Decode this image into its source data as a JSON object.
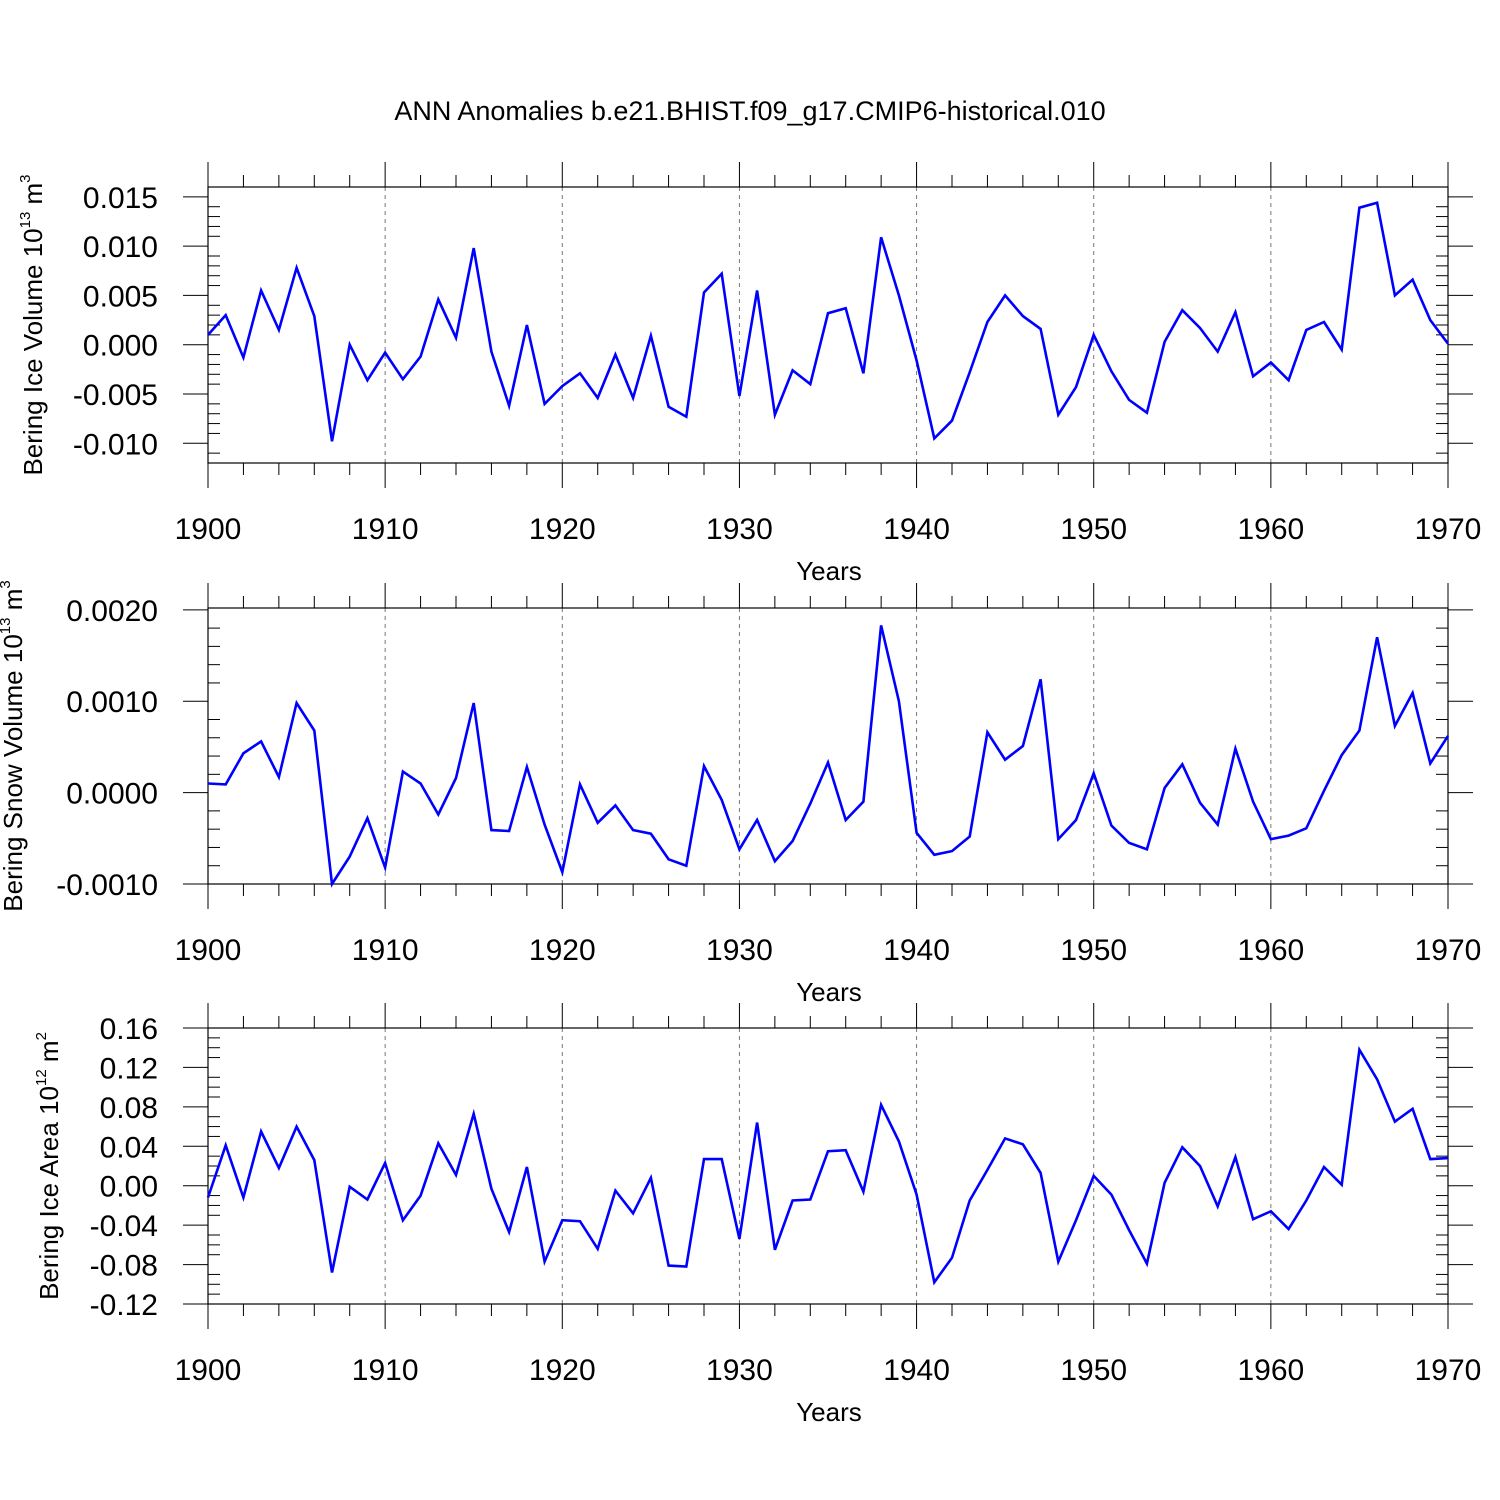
{
  "title": "ANN Anomalies b.e21.BHIST.f09_g17.CMIP6-historical.010",
  "colors": {
    "line": "#0000ff",
    "axis": "#000000",
    "grid": "#777777"
  },
  "chart_data": [
    {
      "type": "line",
      "title": "ANN Anomalies b.e21.BHIST.f09_g17.CMIP6-historical.010",
      "xlabel": "Years",
      "ylabel": {
        "base": "Bering Ice Volume 10",
        "sup": "13",
        "unit": " m",
        "unit_sup": "3"
      },
      "xlim": [
        1900,
        1970
      ],
      "ylim": [
        -0.012,
        0.016
      ],
      "xticks": [
        1900,
        1910,
        1920,
        1930,
        1940,
        1950,
        1960,
        1970
      ],
      "xtick_labels": [
        "1900",
        "1910",
        "1920",
        "1930",
        "1940",
        "1950",
        "1960",
        "1970"
      ],
      "yticks": [
        -0.01,
        -0.005,
        0.0,
        0.005,
        0.01,
        0.015
      ],
      "ytick_labels": [
        "-0.010",
        "-0.005",
        "0.000",
        "0.005",
        "0.010",
        "0.015"
      ],
      "yminor_step": 0.001,
      "grid": "vertical dashed at decades",
      "x_start": 1900,
      "values": [
        0.001,
        0.003,
        -0.0013,
        0.0055,
        0.0015,
        0.0078,
        0.0029,
        -0.0098,
        0.0,
        -0.0036,
        -0.0008,
        -0.0035,
        -0.0012,
        0.0046,
        0.0007,
        0.0098,
        -0.0007,
        -0.0062,
        0.002,
        -0.006,
        -0.0042,
        -0.0029,
        -0.0054,
        -0.001,
        -0.0054,
        0.0009,
        -0.0063,
        -0.0073,
        0.0053,
        0.0072,
        -0.0052,
        0.0055,
        -0.0071,
        -0.0026,
        -0.004,
        0.0032,
        0.0037,
        -0.0029,
        0.0109,
        0.005,
        -0.0016,
        -0.0095,
        -0.0077,
        -0.0028,
        0.0023,
        0.005,
        0.0029,
        0.0016,
        -0.0071,
        -0.0043,
        0.001,
        -0.0027,
        -0.0056,
        -0.0069,
        0.0003,
        0.0035,
        0.0017,
        -0.0007,
        0.0033,
        -0.0032,
        -0.0018,
        -0.0036,
        0.0015,
        0.0023,
        -0.0005,
        0.0139,
        0.0144,
        0.005,
        0.0066,
        0.0025,
        0.0001
      ]
    },
    {
      "type": "line",
      "xlabel": "Years",
      "ylabel": {
        "base": "Bering Snow Volume 10",
        "sup": "13",
        "unit": " m",
        "unit_sup": "3"
      },
      "xlim": [
        1900,
        1970
      ],
      "ylim": [
        -0.001,
        0.00202
      ],
      "xticks": [
        1900,
        1910,
        1920,
        1930,
        1940,
        1950,
        1960,
        1970
      ],
      "xtick_labels": [
        "1900",
        "1910",
        "1920",
        "1930",
        "1940",
        "1950",
        "1960",
        "1970"
      ],
      "yticks": [
        -0.001,
        0.0,
        0.001,
        0.002
      ],
      "ytick_labels": [
        "-0.0010",
        "0.0000",
        "0.0010",
        "0.0020"
      ],
      "yminor_step": 0.0002,
      "grid": "vertical dashed at decades",
      "x_start": 1900,
      "values": [
        0.0001,
        9e-05,
        0.00043,
        0.00056,
        0.00017,
        0.00098,
        0.00068,
        -0.001,
        -0.0007,
        -0.00028,
        -0.00082,
        0.00023,
        0.0001,
        -0.00024,
        0.00016,
        0.00098,
        -0.00041,
        -0.00042,
        0.00028,
        -0.00035,
        -0.00087,
        9e-05,
        -0.00033,
        -0.00014,
        -0.00041,
        -0.00045,
        -0.00073,
        -0.0008,
        0.00029,
        -8e-05,
        -0.00062,
        -0.0003,
        -0.00075,
        -0.00053,
        -0.00012,
        0.00033,
        -0.0003,
        -0.0001,
        0.00183,
        0.001,
        -0.00044,
        -0.00068,
        -0.00064,
        -0.00048,
        0.00066,
        0.00036,
        0.00051,
        0.00124,
        -0.00051,
        -0.0003,
        0.00021,
        -0.00036,
        -0.00055,
        -0.00062,
        5e-05,
        0.00031,
        -0.00011,
        -0.00035,
        0.00048,
        -0.0001,
        -0.00051,
        -0.00047,
        -0.00039,
        2e-05,
        0.00041,
        0.00068,
        0.0017,
        0.00073,
        0.00109,
        0.00032,
        0.00062
      ]
    },
    {
      "type": "line",
      "xlabel": "Years",
      "ylabel": {
        "base": "Bering Ice Area 10",
        "sup": "12",
        "unit": " m",
        "unit_sup": "2"
      },
      "xlim": [
        1900,
        1970
      ],
      "ylim": [
        -0.12,
        0.16
      ],
      "xticks": [
        1900,
        1910,
        1920,
        1930,
        1940,
        1950,
        1960,
        1970
      ],
      "xtick_labels": [
        "1900",
        "1910",
        "1920",
        "1930",
        "1940",
        "1950",
        "1960",
        "1970"
      ],
      "yticks": [
        -0.12,
        -0.08,
        -0.04,
        0.0,
        0.04,
        0.08,
        0.12,
        0.16
      ],
      "ytick_labels": [
        "-0.12",
        "-0.08",
        "-0.04",
        "0.00",
        "0.04",
        "0.08",
        "0.12",
        "0.16"
      ],
      "yminor_step": 0.01,
      "grid": "vertical dashed at decades",
      "x_start": 1900,
      "values": [
        -0.012,
        0.041,
        -0.012,
        0.055,
        0.018,
        0.06,
        0.026,
        -0.088,
        -0.001,
        -0.014,
        0.023,
        -0.035,
        -0.01,
        0.043,
        0.011,
        0.073,
        -0.003,
        -0.047,
        0.019,
        -0.077,
        -0.035,
        -0.036,
        -0.064,
        -0.005,
        -0.028,
        0.008,
        -0.081,
        -0.082,
        0.027,
        0.027,
        -0.054,
        0.064,
        -0.065,
        -0.015,
        -0.014,
        0.035,
        0.036,
        -0.006,
        0.082,
        0.045,
        -0.009,
        -0.098,
        -0.073,
        -0.015,
        0.016,
        0.048,
        0.042,
        0.013,
        -0.077,
        -0.035,
        0.01,
        -0.009,
        -0.045,
        -0.079,
        0.003,
        0.039,
        0.02,
        -0.021,
        0.029,
        -0.034,
        -0.026,
        -0.044,
        -0.015,
        0.019,
        0.001,
        0.138,
        0.108,
        0.065,
        0.078,
        0.027,
        0.028
      ]
    }
  ]
}
